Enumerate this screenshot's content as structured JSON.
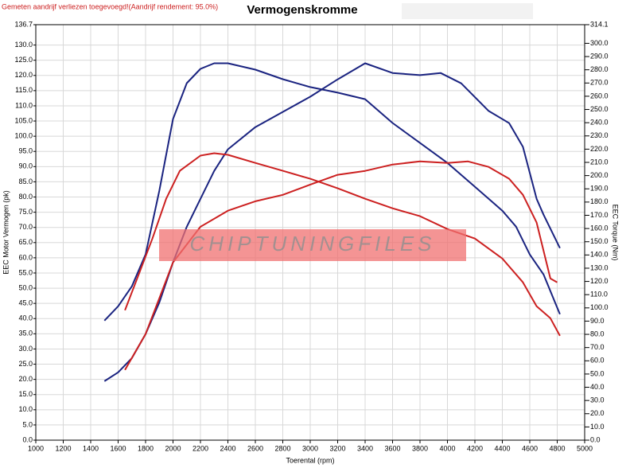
{
  "chart_data": {
    "type": "line",
    "title": "Vermogenskromme",
    "subtitle": "Gemeten aandrijf verliezen toegevoegd!(Aandrijf rendement: 95.0%)",
    "watermark": "CHIPTUNINGFILES",
    "xlabel": "Toerental (rpm)",
    "ylabel": "EEC Motor Vermogen (pk)",
    "y2label": "EEC Torque (Nm)",
    "grid": true,
    "xlim": [
      1000,
      5000
    ],
    "xticks": [
      1000,
      1200,
      1400,
      1600,
      1800,
      2000,
      2200,
      2400,
      2600,
      2800,
      3000,
      3200,
      3400,
      3600,
      3800,
      4000,
      4200,
      4400,
      4600,
      4800,
      5000
    ],
    "ylim": [
      0,
      136.7
    ],
    "yticks": [
      {
        "value": 0,
        "label": "0.0"
      },
      {
        "value": 5,
        "label": "5.0"
      },
      {
        "value": 10,
        "label": "10.0"
      },
      {
        "value": 15,
        "label": "15.0"
      },
      {
        "value": 20,
        "label": "20.0"
      },
      {
        "value": 25,
        "label": "25.0"
      },
      {
        "value": 30,
        "label": "30.0"
      },
      {
        "value": 35,
        "label": "35.0"
      },
      {
        "value": 40,
        "label": "40.0"
      },
      {
        "value": 45,
        "label": "45.0"
      },
      {
        "value": 50,
        "label": "50.0"
      },
      {
        "value": 55,
        "label": "55.0"
      },
      {
        "value": 60,
        "label": "60.0"
      },
      {
        "value": 65,
        "label": "65.0"
      },
      {
        "value": 70,
        "label": "70.0"
      },
      {
        "value": 75,
        "label": "75.0"
      },
      {
        "value": 80,
        "label": "80.0"
      },
      {
        "value": 85,
        "label": "85.0"
      },
      {
        "value": 90,
        "label": "90.0"
      },
      {
        "value": 95,
        "label": "95.0"
      },
      {
        "value": 100,
        "label": "100.0"
      },
      {
        "value": 105,
        "label": "105.0"
      },
      {
        "value": 110,
        "label": "110.0"
      },
      {
        "value": 115,
        "label": "115.0"
      },
      {
        "value": 120,
        "label": "120.0"
      },
      {
        "value": 125,
        "label": "125.0"
      },
      {
        "value": 130,
        "label": "130.0"
      },
      {
        "value": 136.7,
        "label": "136.7"
      }
    ],
    "y2lim": [
      0,
      314.1
    ],
    "y2ticks": [
      {
        "value": 0,
        "label": "0.0"
      },
      {
        "value": 10,
        "label": "10.0"
      },
      {
        "value": 20,
        "label": "20.0"
      },
      {
        "value": 30,
        "label": "30.0"
      },
      {
        "value": 40,
        "label": "40.0"
      },
      {
        "value": 50,
        "label": "50.0"
      },
      {
        "value": 60,
        "label": "60.0"
      },
      {
        "value": 70,
        "label": "70.0"
      },
      {
        "value": 80,
        "label": "80.0"
      },
      {
        "value": 90,
        "label": "90.0"
      },
      {
        "value": 100,
        "label": "100.0"
      },
      {
        "value": 110,
        "label": "110.0"
      },
      {
        "value": 120,
        "label": "120.0"
      },
      {
        "value": 130,
        "label": "130.0"
      },
      {
        "value": 140,
        "label": "140.0"
      },
      {
        "value": 150,
        "label": "150.0"
      },
      {
        "value": 160,
        "label": "160.0"
      },
      {
        "value": 170,
        "label": "170.0"
      },
      {
        "value": 180,
        "label": "180.0"
      },
      {
        "value": 190,
        "label": "190.0"
      },
      {
        "value": 200,
        "label": "200.0"
      },
      {
        "value": 210,
        "label": "210.0"
      },
      {
        "value": 220,
        "label": "220.0"
      },
      {
        "value": 230,
        "label": "230.0"
      },
      {
        "value": 240,
        "label": "240.0"
      },
      {
        "value": 250,
        "label": "250.0"
      },
      {
        "value": 260,
        "label": "260.0"
      },
      {
        "value": 270,
        "label": "270.0"
      },
      {
        "value": 280,
        "label": "280.0"
      },
      {
        "value": 290,
        "label": "290.0"
      },
      {
        "value": 300,
        "label": "300.0"
      },
      {
        "value": 314.1,
        "label": "314.1"
      }
    ],
    "series": [
      {
        "color": "#1a2380",
        "axis": "y",
        "x": [
          1500,
          1600,
          1700,
          1800,
          1900,
          2000,
          2100,
          2200,
          2300,
          2400,
          2600,
          2800,
          3000,
          3200,
          3400,
          3600,
          3800,
          3950,
          4100,
          4300,
          4450,
          4550,
          4650,
          4700,
          4820
        ],
        "values": [
          19.4,
          22.3,
          27.0,
          34.9,
          45.3,
          58.5,
          70.2,
          79.4,
          88.6,
          95.7,
          103.0,
          108.0,
          113.0,
          118.7,
          124.0,
          120.8,
          120.1,
          120.8,
          117.4,
          108.3,
          104.3,
          96.5,
          79.4,
          74.2,
          63.2
        ]
      },
      {
        "color": "#1a2380",
        "axis": "y2",
        "x": [
          1500,
          1600,
          1700,
          1800,
          1900,
          2000,
          2100,
          2200,
          2300,
          2400,
          2600,
          2800,
          3000,
          3200,
          3400,
          3600,
          3800,
          4000,
          4200,
          4400,
          4500,
          4600,
          4700,
          4820
        ],
        "values": [
          90.4,
          101.2,
          116.3,
          140.4,
          188.6,
          242.8,
          269.9,
          280.7,
          284.9,
          284.9,
          280.1,
          272.9,
          266.9,
          262.7,
          257.8,
          239.8,
          224.7,
          209.6,
          191.6,
          173.5,
          161.4,
          140.4,
          125.3,
          95.2
        ]
      },
      {
        "color": "#cc2020",
        "axis": "y",
        "x": [
          1650,
          1800,
          1900,
          2000,
          2200,
          2400,
          2600,
          2800,
          3000,
          3200,
          3400,
          3600,
          3800,
          4000,
          4150,
          4300,
          4450,
          4550,
          4650,
          4750,
          4800
        ],
        "values": [
          23.1,
          34.9,
          46.7,
          58.5,
          70.2,
          75.5,
          78.6,
          80.7,
          84.1,
          87.3,
          88.6,
          90.7,
          91.7,
          91.2,
          91.7,
          89.9,
          86.0,
          80.7,
          71.6,
          53.2,
          51.9
        ]
      },
      {
        "color": "#cc2020",
        "axis": "y2",
        "x": [
          1650,
          1750,
          1850,
          1950,
          2050,
          2200,
          2300,
          2400,
          2600,
          2800,
          3000,
          3200,
          3400,
          3600,
          3800,
          4000,
          4200,
          4400,
          4550,
          4650,
          4750,
          4820
        ],
        "values": [
          98.2,
          125.3,
          152.4,
          182.5,
          203.6,
          215.1,
          216.9,
          215.7,
          209.6,
          203.6,
          197.6,
          190.4,
          182.5,
          175.3,
          169.3,
          159.6,
          152.4,
          137.3,
          119.3,
          101.2,
          92.2,
          78.9
        ]
      }
    ]
  }
}
